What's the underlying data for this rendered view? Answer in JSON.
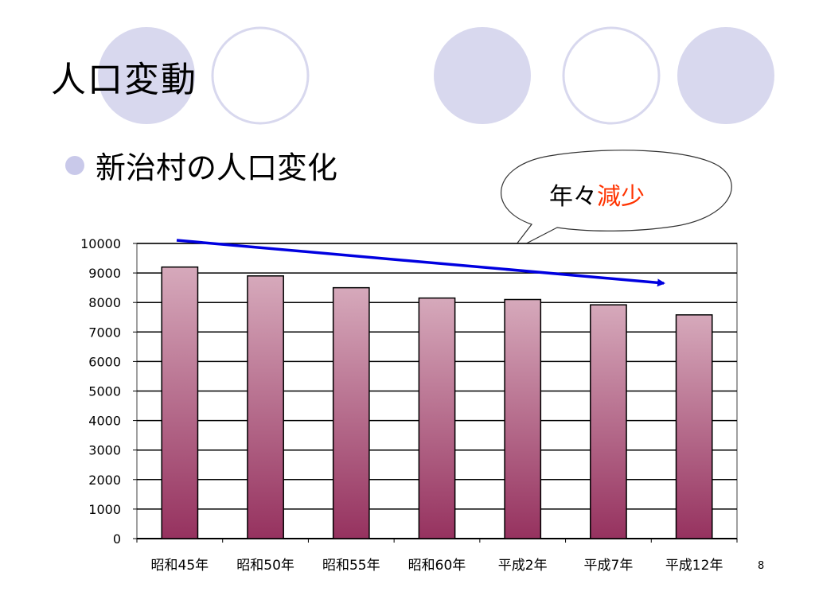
{
  "slide": {
    "title": "人口変動",
    "bullet": "新治村の人口変化",
    "page_number": "8",
    "accent_color": "#c9c9ea"
  },
  "callout": {
    "prefix": "年々",
    "highlight": "減少",
    "highlight_color": "#ff3300"
  },
  "chart_data": {
    "type": "bar",
    "title": "",
    "xlabel": "",
    "ylabel": "",
    "categories": [
      "昭和45年",
      "昭和50年",
      "昭和55年",
      "昭和60年",
      "平成2年",
      "平成7年",
      "平成12年"
    ],
    "values": [
      9200,
      8900,
      8500,
      8150,
      8100,
      7920,
      7580
    ],
    "ylim": [
      0,
      10000
    ],
    "yticks": [
      "0",
      "1000",
      "2000",
      "3000",
      "4000",
      "5000",
      "6000",
      "7000",
      "8000",
      "9000",
      "10000"
    ],
    "grid": true,
    "bar_color_top": "#d6a9bb",
    "bar_color_bottom": "#96325f",
    "trend_arrow_color": "#0000e0"
  }
}
